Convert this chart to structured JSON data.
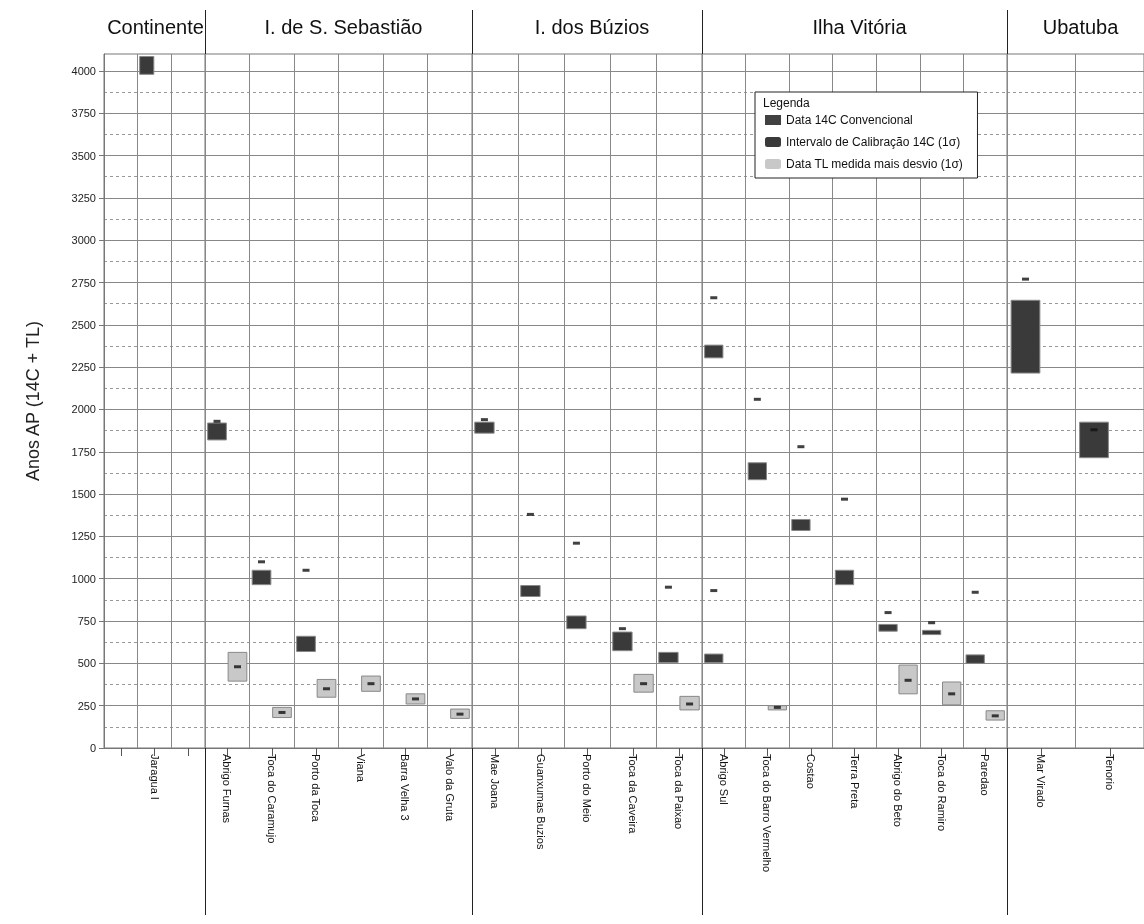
{
  "chart_data": [
    {
      "type": "bar",
      "title": "Continente",
      "ylabel": "Anos AP (14C + TL)",
      "categories": [
        null,
        "Jaragua I",
        null
      ],
      "ylim": [
        0,
        4100
      ],
      "yticks": [
        0,
        {
          "value": 125,
          "label": null
        },
        250,
        {
          "value": 375,
          "label": null
        },
        500,
        {
          "value": 625,
          "label": null
        },
        750,
        {
          "value": 875,
          "label": null
        },
        1000,
        {
          "value": 1125,
          "label": null
        },
        1250,
        {
          "value": 1375,
          "label": null
        },
        1500,
        {
          "value": 1625,
          "label": null
        },
        1750,
        {
          "value": 1875,
          "label": null
        },
        2000,
        {
          "value": 2125,
          "label": null
        },
        2250,
        {
          "value": 2375,
          "label": null
        },
        2500,
        {
          "value": 2625,
          "label": null
        },
        2750,
        {
          "value": 2875,
          "label": null
        },
        3000,
        {
          "value": 3125,
          "label": null
        },
        3250,
        {
          "value": 3375,
          "label": null
        },
        3500,
        {
          "value": 3625,
          "label": null
        },
        3750,
        {
          "value": 3875,
          "label": null
        },
        4000
      ],
      "grid": true,
      "marker": "square",
      "series": [
        {
          "type": "bar",
          "color": "#3a3a3a",
          "base": [
            null,
            3980,
            null
          ],
          "values": [
            null,
            105,
            null
          ]
        }
      ]
    },
    {
      "type": "bar",
      "title": "I. de S. Sebastião",
      "categories": [
        "Abrigo Furnas",
        "Toca do Caramujo",
        "Porto da Toca",
        "Viana",
        "Barra Velha 3",
        "Valo da Gruta"
      ],
      "ylim": [
        0,
        4100
      ],
      "yticks": [
        0,
        {
          "value": 125,
          "label": null
        },
        250,
        {
          "value": 375,
          "label": null
        },
        500,
        {
          "value": 625,
          "label": null
        },
        750,
        {
          "value": 875,
          "label": null
        },
        1000,
        {
          "value": 1125,
          "label": null
        },
        1250,
        {
          "value": 1375,
          "label": null
        },
        1500,
        {
          "value": 1625,
          "label": null
        },
        1750,
        {
          "value": 1875,
          "label": null
        },
        2000,
        {
          "value": 2125,
          "label": null
        },
        2250,
        {
          "value": 2375,
          "label": null
        },
        2500,
        {
          "value": 2625,
          "label": null
        },
        2750,
        {
          "value": 2875,
          "label": null
        },
        3000,
        {
          "value": 3125,
          "label": null
        },
        3250,
        {
          "value": 3375,
          "label": null
        },
        3500,
        {
          "value": 3625,
          "label": null
        },
        3750,
        {
          "value": 3875,
          "label": null
        },
        4000
      ],
      "tick_labels": "x",
      "grid": true,
      "marker": "square",
      "series": [
        {
          "type": "scatter",
          "color": "#111111",
          "values": [
            1930,
            1100,
            1050,
            null,
            null,
            null
          ]
        },
        {
          "type": "bar",
          "color": "#3a3a3a",
          "base": [
            1820,
            965,
            570,
            null,
            null,
            null
          ],
          "values": [
            100,
            85,
            90,
            null,
            null,
            null
          ]
        },
        {
          "type": "bar",
          "color": "#c8c8c8",
          "base": [
            395,
            180,
            300,
            335,
            260,
            175
          ],
          "values": [
            170,
            60,
            105,
            90,
            60,
            55
          ]
        },
        {
          "type": "scatter",
          "color": "#111111",
          "values": [
            480,
            210,
            350,
            380,
            290,
            200
          ]
        }
      ]
    },
    {
      "type": "bar",
      "title": "I. dos Búzios",
      "categories": [
        "Mae Joana",
        "Guanxumas Buzios",
        "Porto do Meio",
        "Toca da Caveira",
        "Toca da Paixao"
      ],
      "ylim": [
        0,
        4100
      ],
      "yticks": [
        0,
        {
          "value": 125,
          "label": null
        },
        250,
        {
          "value": 375,
          "label": null
        },
        500,
        {
          "value": 625,
          "label": null
        },
        750,
        {
          "value": 875,
          "label": null
        },
        1000,
        {
          "value": 1125,
          "label": null
        },
        1250,
        {
          "value": 1375,
          "label": null
        },
        1500,
        {
          "value": 1625,
          "label": null
        },
        1750,
        {
          "value": 1875,
          "label": null
        },
        2000,
        {
          "value": 2125,
          "label": null
        },
        2250,
        {
          "value": 2375,
          "label": null
        },
        2500,
        {
          "value": 2625,
          "label": null
        },
        2750,
        {
          "value": 2875,
          "label": null
        },
        3000,
        {
          "value": 3125,
          "label": null
        },
        3250,
        {
          "value": 3375,
          "label": null
        },
        3500,
        {
          "value": 3625,
          "label": null
        },
        3750,
        {
          "value": 3875,
          "label": null
        },
        4000
      ],
      "tick_labels": "x",
      "grid": true,
      "marker": "square",
      "series": [
        {
          "type": "scatter",
          "color": "#111111",
          "values": [
            1940,
            1380,
            1210,
            705,
            950
          ]
        },
        {
          "type": "bar",
          "color": "#3a3a3a",
          "base": [
            1860,
            895,
            705,
            575,
            505
          ],
          "values": [
            65,
            65,
            75,
            110,
            60
          ]
        },
        {
          "type": "bar",
          "color": "#c8c8c8",
          "base": [
            null,
            null,
            null,
            330,
            225
          ],
          "values": [
            null,
            null,
            null,
            105,
            80
          ]
        },
        {
          "type": "scatter",
          "color": "#111111",
          "values": [
            null,
            null,
            null,
            380,
            260
          ]
        }
      ]
    },
    {
      "type": "bar",
      "title": "Ilha Vitória",
      "legend_title": "Legenda",
      "legend": "top right",
      "categories": [
        "Abrigo Sul",
        "Toca do Barro Vermelho",
        "Costao",
        "Terra Preta",
        "Abrigo do Beto",
        "Toca do Ramiro",
        "Paredao"
      ],
      "ylim": [
        0,
        4100
      ],
      "yticks": [
        0,
        {
          "value": 125,
          "label": null
        },
        250,
        {
          "value": 375,
          "label": null
        },
        500,
        {
          "value": 625,
          "label": null
        },
        750,
        {
          "value": 875,
          "label": null
        },
        1000,
        {
          "value": 1125,
          "label": null
        },
        1250,
        {
          "value": 1375,
          "label": null
        },
        1500,
        {
          "value": 1625,
          "label": null
        },
        1750,
        {
          "value": 1875,
          "label": null
        },
        2000,
        {
          "value": 2125,
          "label": null
        },
        2250,
        {
          "value": 2375,
          "label": null
        },
        2500,
        {
          "value": 2625,
          "label": null
        },
        2750,
        {
          "value": 2875,
          "label": null
        },
        3000,
        {
          "value": 3125,
          "label": null
        },
        3250,
        {
          "value": 3375,
          "label": null
        },
        3500,
        {
          "value": 3625,
          "label": null
        },
        3750,
        {
          "value": 3875,
          "label": null
        },
        4000
      ],
      "tick_labels": "x",
      "grid": true,
      "marker": "square",
      "series": [
        {
          "type": "scatter",
          "name": "Data 14C Convencional",
          "color": "#111111",
          "values": [
            2660,
            2060,
            1780,
            1470,
            800,
            740,
            920
          ]
        },
        {
          "type": "bar",
          "name": "Intervalo de Calibração 14C (1σ)",
          "color": "#3a3a3a",
          "base": [
            2305,
            1585,
            1285,
            965,
            690,
            670,
            500
          ],
          "values": [
            75,
            100,
            65,
            85,
            40,
            25,
            50
          ]
        },
        {
          "type": "bar",
          "name": "Data TL medida mais desvio (1σ)",
          "color": "#c8c8c8",
          "base": [
            null,
            225,
            null,
            null,
            320,
            255,
            165
          ],
          "values": [
            null,
            25,
            null,
            null,
            170,
            135,
            55
          ]
        },
        {
          "type": "scatter",
          "color": "#111111",
          "values": [
            null,
            240,
            null,
            null,
            400,
            320,
            190
          ]
        },
        {
          "type": "bar",
          "color": "#3a3a3a",
          "base": [
            505,
            null,
            null,
            null,
            null,
            null,
            null
          ],
          "values": [
            50,
            null,
            null,
            null,
            null,
            null,
            null
          ]
        },
        {
          "type": "scatter",
          "color": "#111111",
          "values": [
            930,
            null,
            null,
            null,
            null,
            null,
            null
          ]
        }
      ]
    },
    {
      "type": "bar",
      "title": "Ubatuba",
      "categories": [
        "Mar Virado",
        "Tenorio"
      ],
      "ylim": [
        0,
        4100
      ],
      "yticks": [
        0,
        {
          "value": 125,
          "label": null
        },
        250,
        {
          "value": 375,
          "label": null
        },
        500,
        {
          "value": 625,
          "label": null
        },
        750,
        {
          "value": 875,
          "label": null
        },
        1000,
        {
          "value": 1125,
          "label": null
        },
        1250,
        {
          "value": 1375,
          "label": null
        },
        1500,
        {
          "value": 1625,
          "label": null
        },
        1750,
        {
          "value": 1875,
          "label": null
        },
        2000,
        {
          "value": 2125,
          "label": null
        },
        2250,
        {
          "value": 2375,
          "label": null
        },
        2500,
        {
          "value": 2625,
          "label": null
        },
        2750,
        {
          "value": 2875,
          "label": null
        },
        3000,
        {
          "value": 3125,
          "label": null
        },
        3250,
        {
          "value": 3375,
          "label": null
        },
        3500,
        {
          "value": 3625,
          "label": null
        },
        3750,
        {
          "value": 3875,
          "label": null
        },
        4000
      ],
      "tick_labels": "x",
      "grid": true,
      "marker": "square",
      "series": [
        {
          "type": "scatter",
          "color": "#111111",
          "values": [
            2770,
            1880
          ]
        },
        {
          "type": "bar",
          "color": "#3a3a3a",
          "base": [
            2215,
            1715
          ],
          "values": [
            430,
            210
          ]
        }
      ]
    }
  ]
}
